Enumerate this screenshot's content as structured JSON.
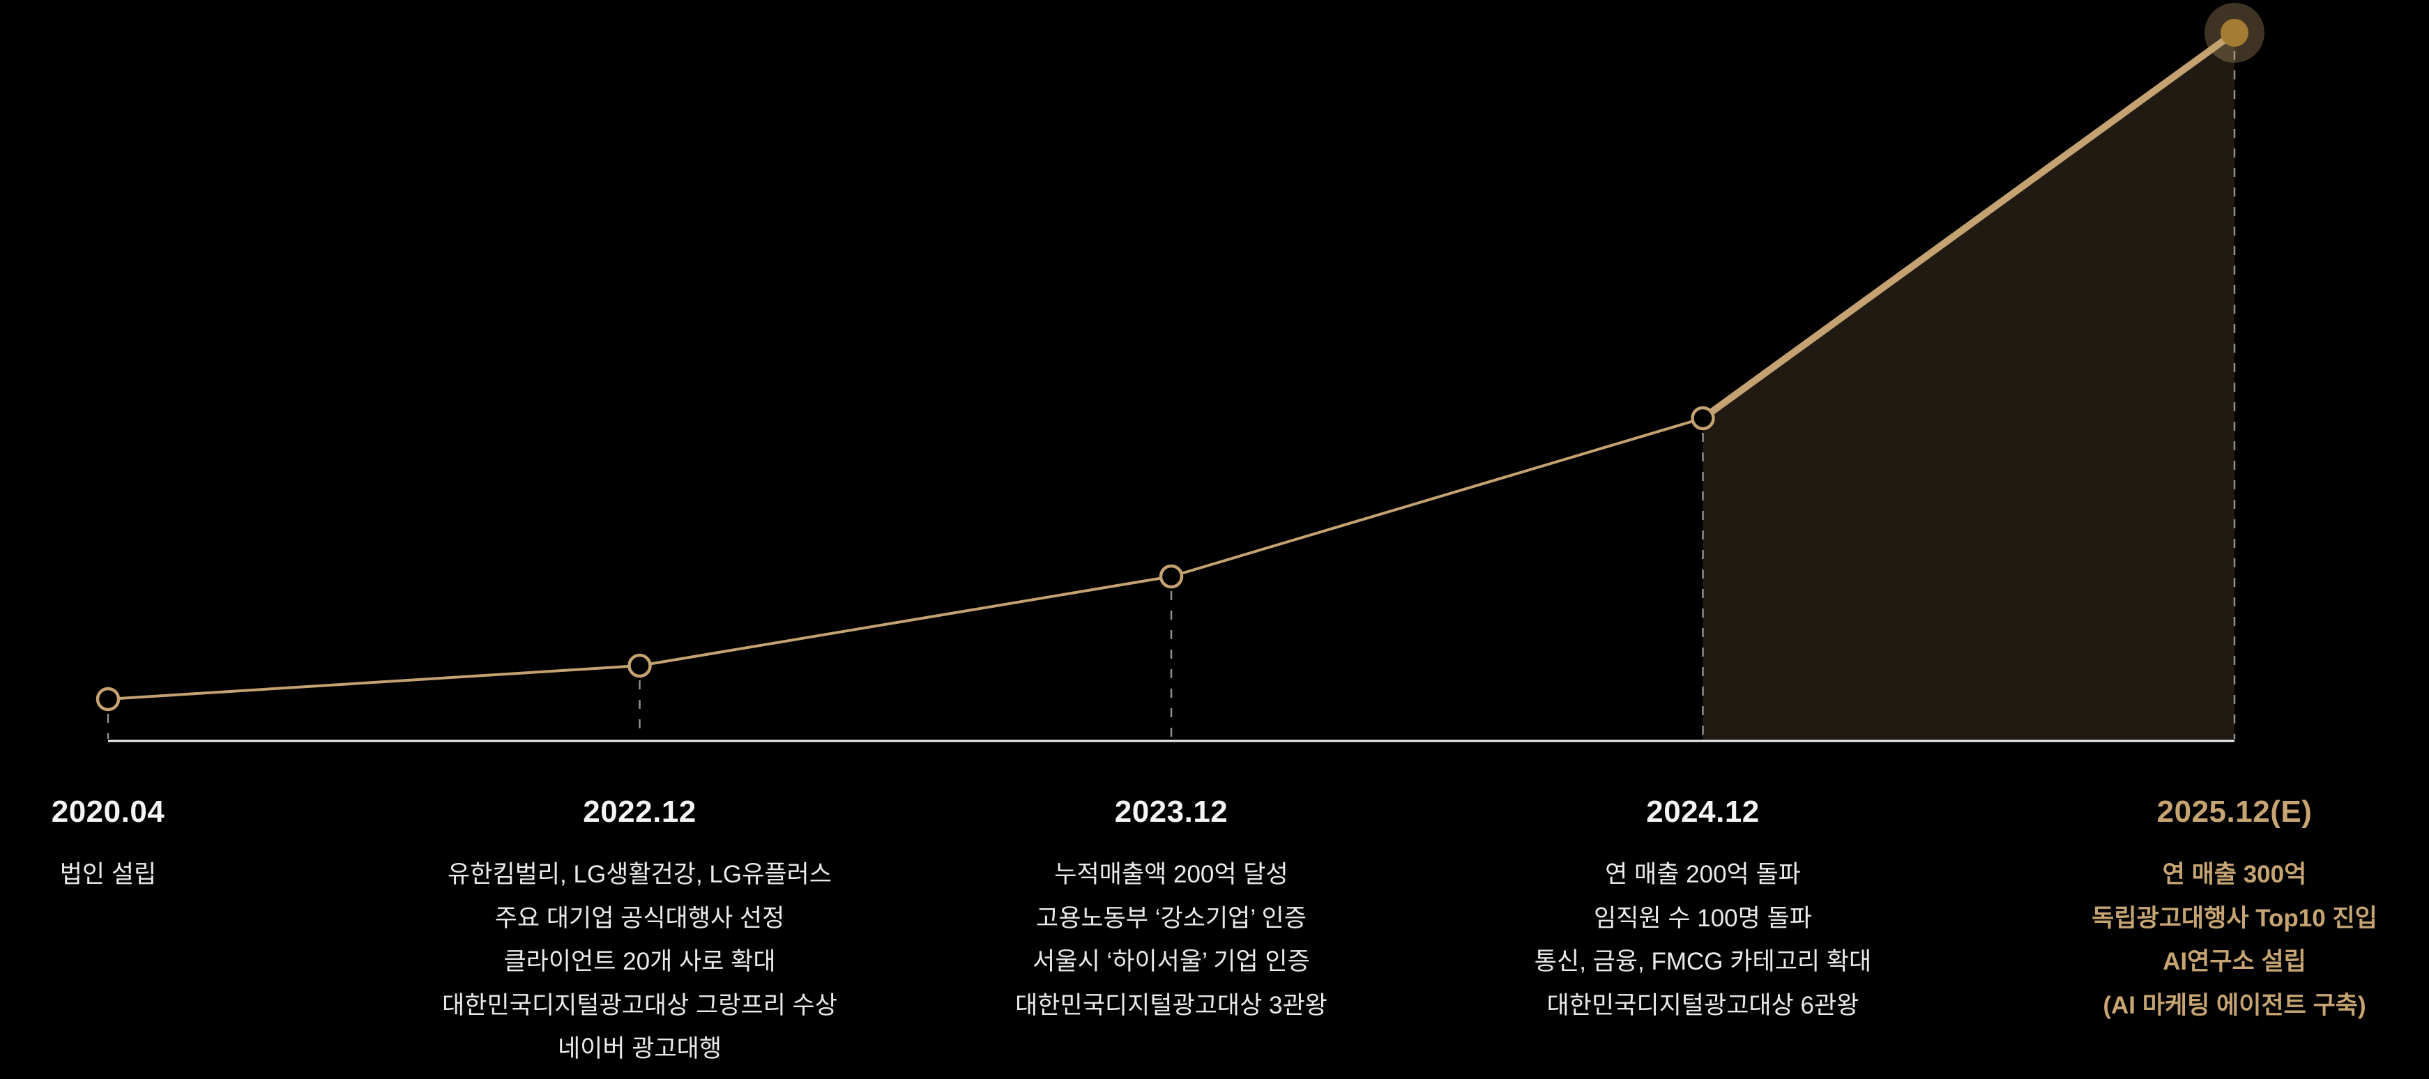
{
  "colors": {
    "background": "#000000",
    "line": "#C4A271",
    "point_fill": "#A57C33",
    "point_halo": "rgba(196,162,113,0.32)",
    "area_fill": "rgba(196,162,113,0.16)",
    "baseline": "#F2F2F2",
    "dash": "#909090",
    "label_white": "#F5F5F5",
    "desc_white": "#EAEAEA",
    "gold": "#C6A573"
  },
  "chart_data": {
    "type": "line",
    "title": "",
    "categories": [
      "2020.04",
      "2022.12",
      "2023.12",
      "2024.12",
      "2025.12(E)"
    ],
    "series": [
      {
        "name": "company-growth-curve",
        "values": [
          60,
          108,
          236,
          463,
          1016
        ]
      }
    ],
    "ylim": [
      0,
      1063
    ],
    "xlabel": "",
    "ylabel": "",
    "grid": false,
    "legend_position": "none",
    "notes": "No numeric y-axis shown; values are relative heights of each milestone point above the white baseline. Final projected segment (2024.12 to 2025.12(E)) is drawn thicker with a shaded area beneath it; final point is a solid gold dot with a halo, earlier points are open circles; dashed vertical droplines connect points to the baseline."
  },
  "milestones": [
    {
      "date": "2020.04",
      "highlight": false,
      "items": [
        "법인 설립"
      ]
    },
    {
      "date": "2022.12",
      "highlight": false,
      "items": [
        "유한킴벌리, LG생활건강, LG유플러스",
        "주요 대기업 공식대행사 선정",
        "클라이언트 20개 사로 확대",
        "대한민국디지털광고대상 그랑프리 수상",
        "네이버 광고대행"
      ]
    },
    {
      "date": "2023.12",
      "highlight": false,
      "items": [
        "누적매출액 200억 달성",
        "고용노동부 ‘강소기업’ 인증",
        "서울시 ‘하이서울’ 기업 인증",
        "대한민국디지털광고대상 3관왕"
      ]
    },
    {
      "date": "2024.12",
      "highlight": false,
      "items": [
        "연 매출 200억 돌파",
        "임직원 수 100명 돌파",
        "통신, 금융, FMCG 카테고리 확대",
        "대한민국디지털광고대상 6관왕"
      ]
    },
    {
      "date": "2025.12(E)",
      "highlight": true,
      "items": [
        "연 매출 300억",
        "독립광고대행사 Top10 진입",
        "AI연구소 설립",
        "(AI 마케팅 에이전트 구축)"
      ]
    }
  ]
}
